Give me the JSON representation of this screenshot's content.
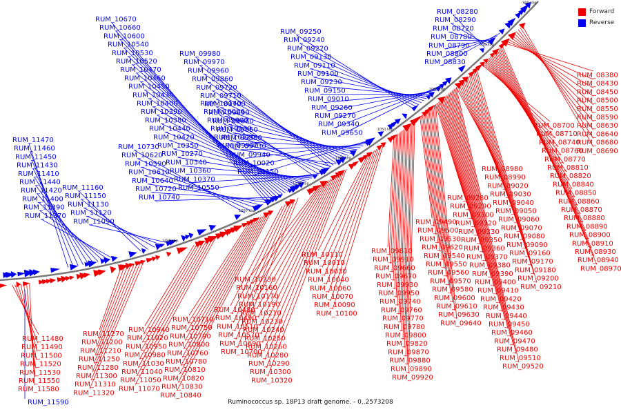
{
  "caption": "Ruminococcus sp. 18P13 draft genome. - 0..2573208",
  "legend": [
    {
      "label": "Forward",
      "color": "#ee0000"
    },
    {
      "label": "Reverse",
      "color": "#0000ee"
    }
  ],
  "colors": {
    "forward": "#ee0000",
    "reverse": "#0000ee",
    "backbone": "#777777"
  },
  "scale_ticks": [
    "900 kbp",
    "950 kbp",
    "1000 kbp",
    "1050 kbp",
    "1100 kbp",
    "1150 kbp",
    "1200 kbp",
    "1250 kbp"
  ],
  "reverse_groups": [
    [
      "RUM_10670",
      "RUM_10660",
      "RUM_10600",
      "RUM_10540",
      "RUM_10530",
      "RUM_10520",
      "RUM_10470",
      "RUM_10460",
      "RUM_10450",
      "RUM_10430",
      "RUM_10400",
      "RUM_10390",
      "RUM_10380",
      "RUM_10440",
      "RUM_10420",
      "RUM_10350",
      "RUM_10270",
      "RUM_10340",
      "RUM_10360",
      "RUM_10370",
      "RUM_10550"
    ],
    [
      "RUM_10730",
      "RUM_10620",
      "RUM_10590",
      "RUM_10610",
      "RUM_10640",
      "RUM_10720",
      "RUM_10740"
    ],
    [
      "RUM_09980",
      "RUM_09970",
      "RUM_09960",
      "RUM_09860",
      "RUM_09720",
      "RUM_09710",
      "RUM_09700",
      "RUM_09690",
      "RUM_09680",
      "RUM_09850",
      "RUM_09830",
      "RUM_09730",
      "RUM_09940",
      "RUM_10020",
      "RUM_10150"
    ],
    [
      "RUM_10140",
      "RUM_10000",
      "RUM_09900",
      "RUM_10130",
      "RUM_10120",
      "RUM_09990"
    ],
    [
      "RUM_09250",
      "RUM_09240",
      "RUM_09220",
      "RUM_09130",
      "RUM_09110",
      "RUM_09100",
      "RUM_09230",
      "RUM_09150",
      "RUM_09010",
      "RUM_09260",
      "RUM_09270",
      "RUM_09340",
      "RUM_09650"
    ],
    [
      "RUM_08280",
      "RUM_08290",
      "RUM_08720",
      "RUM_08780",
      "RUM_08790",
      "RUM_08800",
      "RUM_08830"
    ],
    [
      "RUM_11470",
      "RUM_11460",
      "RUM_11450",
      "RUM_11430",
      "RUM_11410",
      "RUM_11440",
      "RUM_11420",
      "RUM_11400",
      "RUM_11390",
      "RUM_11370"
    ],
    [
      "RUM_11160",
      "RUM_11150",
      "RUM_11130",
      "RUM_11120",
      "RUM_11090"
    ]
  ],
  "forward_groups": [
    [
      "RUM_08380",
      "RUM_08430",
      "RUM_08450",
      "RUM_08500",
      "RUM_08550",
      "RUM_08590",
      "RUM_08630",
      "RUM_08640",
      "RUM_08680",
      "RUM_08690"
    ],
    [
      "RUM_08700",
      "RUM_08710",
      "RUM_08740",
      "RUM_08760",
      "RUM_08770",
      "RUM_08810",
      "RUM_08820",
      "RUM_08840",
      "RUM_08850",
      "RUM_08860",
      "RUM_08870",
      "RUM_08880",
      "RUM_08890",
      "RUM_08900",
      "RUM_08910",
      "RUM_08930",
      "RUM_08940",
      "RUM_08970"
    ],
    [
      "RUM_08980",
      "RUM_08990",
      "RUM_09020",
      "RUM_09030",
      "RUM_09040",
      "RUM_09050",
      "RUM_09060",
      "RUM_09070",
      "RUM_09080",
      "RUM_09090",
      "RUM_09160",
      "RUM_09170",
      "RUM_09180",
      "RUM_09200",
      "RUM_09210"
    ],
    [
      "RUM_09280",
      "RUM_09290",
      "RUM_09300",
      "RUM_09320",
      "RUM_09330",
      "RUM_09350",
      "RUM_09360",
      "RUM_09370",
      "RUM_09380",
      "RUM_09390",
      "RUM_09400",
      "RUM_09410",
      "RUM_09420",
      "RUM_09430",
      "RUM_09440",
      "RUM_09450",
      "RUM_09460",
      "RUM_09470",
      "RUM_09480",
      "RUM_09510",
      "RUM_09520"
    ],
    [
      "RUM_09490",
      "RUM_09500",
      "RUM_09530",
      "RUM_09620",
      "RUM_09540",
      "RUM_09550",
      "RUM_09560",
      "RUM_09570",
      "RUM_09580",
      "RUM_09600",
      "RUM_09610",
      "RUM_09630",
      "RUM_09640"
    ],
    [
      "RUM_09810",
      "RUM_09910",
      "RUM_09660",
      "RUM_09670",
      "RUM_09930",
      "RUM_09950",
      "RUM_09740",
      "RUM_09760",
      "RUM_09770",
      "RUM_09780",
      "RUM_09800",
      "RUM_09820",
      "RUM_09870",
      "RUM_09880",
      "RUM_09890",
      "RUM_09920"
    ],
    [
      "RUM_10110",
      "RUM_10010",
      "RUM_10030",
      "RUM_10040",
      "RUM_10060",
      "RUM_10070",
      "RUM_10090",
      "RUM_10100"
    ],
    [
      "RUM_10330",
      "RUM_10160",
      "RUM_10170",
      "RUM_10190",
      "RUM_10210",
      "RUM_10230",
      "RUM_10240",
      "RUM_10250",
      "RUM_10260",
      "RUM_10280",
      "RUM_10290",
      "RUM_10300",
      "RUM_10320"
    ],
    [
      "RUM_10710",
      "RUM_10750",
      "RUM_10790",
      "RUM_10800",
      "RUM_10760",
      "RUM_10780",
      "RUM_10810",
      "RUM_10820",
      "RUM_10830",
      "RUM_10840"
    ],
    [
      "RUM_10480",
      "RUM_10490",
      "RUM_10510",
      "RUM_10570",
      "RUM_10690",
      "RUM_10700"
    ],
    [
      "RUM_10940",
      "RUM_11020",
      "RUM_10950",
      "RUM_10980",
      "RUM_11030",
      "RUM_11040",
      "RUM_11050",
      "RUM_11070"
    ],
    [
      "RUM_11270",
      "RUM_11200",
      "RUM_11210",
      "RUM_11250",
      "RUM_11280",
      "RUM_11300",
      "RUM_11310",
      "RUM_11320"
    ],
    [
      "RUM_11480",
      "RUM_11490",
      "RUM_11500",
      "RUM_11520",
      "RUM_11530",
      "RUM_11550",
      "RUM_11580"
    ]
  ],
  "bottom_reverse_label": "RUM_11590"
}
